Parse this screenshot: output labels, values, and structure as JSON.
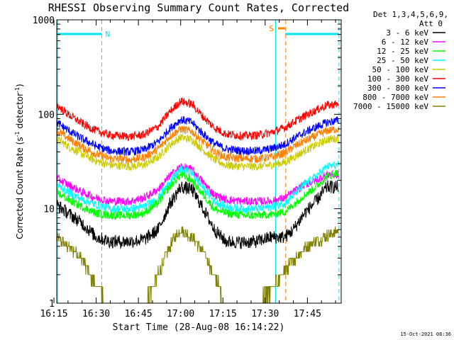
{
  "chart_data": {
    "type": "line",
    "title": "RHESSI Observing Summary Count Rates, Corrected",
    "xlabel": "Start Time (28-Aug-08 16:14:22)",
    "ylabel_main": "Corrected Count Rate (s",
    "ylabel_sup1": "-1",
    "ylabel_mid": " detector",
    "ylabel_sup2": "-1",
    "ylabel_end": ")",
    "yscale": "log",
    "ylim": [
      1,
      1000
    ],
    "xlim_minutes": [
      16.0,
      117.0
    ],
    "x_ticks": [
      {
        "m": 15,
        "label": "16:15"
      },
      {
        "m": 30,
        "label": "16:30"
      },
      {
        "m": 45,
        "label": "16:45"
      },
      {
        "m": 60,
        "label": "17:00"
      },
      {
        "m": 75,
        "label": "17:15"
      },
      {
        "m": 90,
        "label": "17:30"
      },
      {
        "m": 105,
        "label": "17:45"
      }
    ],
    "y_ticks": [
      {
        "v": 1,
        "label": "1"
      },
      {
        "v": 10,
        "label": "10"
      },
      {
        "v": 100,
        "label": "100"
      },
      {
        "v": 1000,
        "label": "1000"
      }
    ],
    "legend_header": [
      "Det 1,3,4,5,6,9,",
      "Att 0"
    ],
    "footer_date": "15-Oct-2021 08:36",
    "flags": {
      "night": {
        "label": "N",
        "start": 16.0,
        "end": 32.0,
        "color": "#00e5ee"
      },
      "saa": {
        "label": "S",
        "start": 94.6,
        "end": 97.0,
        "color": "#ff7f00"
      },
      "saa2": {
        "start": 97.2,
        "end": 116.2,
        "color": "#00e5ee"
      }
    },
    "vlines": [
      {
        "m": 16.3,
        "style": "solid",
        "color": "#00e5ee"
      },
      {
        "m": 32.0,
        "style": "dashed",
        "color": "#00e5ee"
      },
      {
        "m": 93.7,
        "style": "solid",
        "color": "#00e5ee"
      },
      {
        "m": 97.3,
        "style": "dashed",
        "color": "#ff7f00"
      },
      {
        "m": 116.2,
        "style": "dashed",
        "color": "#00e5ee"
      }
    ],
    "series": [
      {
        "name": "3 - 6 keV",
        "color": "#000000",
        "x": [
          16,
          20,
          25,
          30,
          35,
          42,
          47,
          52,
          56,
          60,
          64,
          68,
          72,
          76,
          82,
          87,
          92,
          97,
          100,
          104,
          108,
          112,
          116
        ],
        "y": [
          11,
          9,
          7,
          5,
          4.5,
          4.5,
          4.7,
          6,
          11,
          17,
          16,
          10,
          6,
          4.5,
          4.4,
          4.5,
          5,
          5,
          6,
          9,
          12,
          17,
          17
        ]
      },
      {
        "name": "6 - 12 keV",
        "color": "#ff00ff",
        "x": [
          16,
          20,
          25,
          30,
          35,
          42,
          47,
          52,
          56,
          60,
          64,
          68,
          72,
          76,
          82,
          87,
          92,
          97,
          100,
          104,
          108,
          112,
          116
        ],
        "y": [
          21,
          18,
          15,
          13,
          12,
          12,
          13,
          16,
          22,
          28,
          26,
          19,
          14,
          12.5,
          12,
          12,
          12,
          13,
          15,
          18,
          20,
          23,
          23
        ]
      },
      {
        "name": "12 - 25 keV",
        "color": "#00ff00",
        "x": [
          16,
          20,
          25,
          30,
          35,
          42,
          47,
          52,
          56,
          60,
          64,
          68,
          72,
          76,
          82,
          87,
          92,
          97,
          100,
          104,
          108,
          112,
          116
        ],
        "y": [
          15,
          12.5,
          10.5,
          9,
          8.5,
          8.5,
          9,
          11.5,
          17,
          23,
          20,
          14,
          10,
          9,
          8.5,
          8.5,
          8.7,
          9.3,
          11,
          14,
          17,
          22,
          24
        ]
      },
      {
        "name": "25 - 50 keV",
        "color": "#00ffff",
        "x": [
          16,
          20,
          25,
          30,
          35,
          42,
          47,
          52,
          56,
          60,
          64,
          68,
          72,
          76,
          82,
          87,
          92,
          97,
          100,
          104,
          108,
          112,
          116
        ],
        "y": [
          18,
          15,
          12.5,
          11,
          10,
          10,
          10.5,
          13,
          19,
          26,
          24,
          16.5,
          12,
          10.5,
          10,
          10,
          10.5,
          11.5,
          14,
          18,
          22,
          28,
          29
        ]
      },
      {
        "name": "50 - 100 keV",
        "color": "#cccc00",
        "x": [
          16,
          20,
          25,
          30,
          35,
          42,
          47,
          52,
          56,
          60,
          64,
          68,
          72,
          76,
          82,
          87,
          92,
          97,
          100,
          104,
          108,
          112,
          116
        ],
        "y": [
          55,
          46,
          38,
          32,
          29,
          28,
          29,
          35,
          47,
          57,
          54,
          42,
          33,
          29,
          28,
          28,
          29,
          31,
          35,
          41,
          47,
          54,
          56
        ]
      },
      {
        "name": "100 - 300 keV",
        "color": "#ff0000",
        "x": [
          16,
          20,
          25,
          30,
          35,
          42,
          47,
          52,
          56,
          60,
          64,
          68,
          72,
          76,
          82,
          87,
          92,
          97,
          100,
          104,
          108,
          112,
          116
        ],
        "y": [
          125,
          100,
          80,
          67,
          60,
          58,
          61,
          74,
          105,
          138,
          128,
          94,
          72,
          62,
          59,
          60,
          64,
          72,
          82,
          96,
          110,
          125,
          128
        ]
      },
      {
        "name": "300 - 800 keV",
        "color": "#0000ff",
        "x": [
          16,
          20,
          25,
          30,
          35,
          42,
          47,
          52,
          56,
          60,
          64,
          68,
          72,
          76,
          82,
          87,
          92,
          97,
          100,
          104,
          108,
          112,
          116
        ],
        "y": [
          82,
          68,
          55,
          46,
          41,
          40,
          42,
          51,
          70,
          88,
          82,
          62,
          49,
          43,
          41,
          41,
          43,
          48,
          55,
          64,
          73,
          82,
          86
        ]
      },
      {
        "name": "800 - 7000 keV",
        "color": "#ff7f00",
        "x": [
          16,
          20,
          25,
          30,
          35,
          42,
          47,
          52,
          56,
          60,
          64,
          68,
          72,
          76,
          82,
          87,
          92,
          97,
          100,
          104,
          108,
          112,
          116
        ],
        "y": [
          67,
          56,
          45,
          38,
          34,
          33,
          35,
          43,
          58,
          70,
          66,
          51,
          40,
          35,
          34,
          34,
          35,
          39,
          45,
          52,
          59,
          67,
          70
        ]
      },
      {
        "name": "7000 - 15000 keV",
        "color": "#808000",
        "x": [
          16,
          20,
          25,
          28,
          31,
          34,
          38,
          42,
          46,
          50,
          54,
          57,
          60,
          64,
          68,
          72,
          76,
          80,
          84,
          88,
          92,
          96,
          100,
          104,
          108,
          112,
          116
        ],
        "y": [
          5,
          4,
          3,
          2,
          1.4,
          1,
          1,
          1,
          1,
          1.4,
          2.8,
          4.5,
          6,
          5,
          3.5,
          2,
          1,
          1,
          1,
          1,
          1.4,
          2,
          2.8,
          3.8,
          4.5,
          5.2,
          5.8
        ]
      }
    ]
  }
}
